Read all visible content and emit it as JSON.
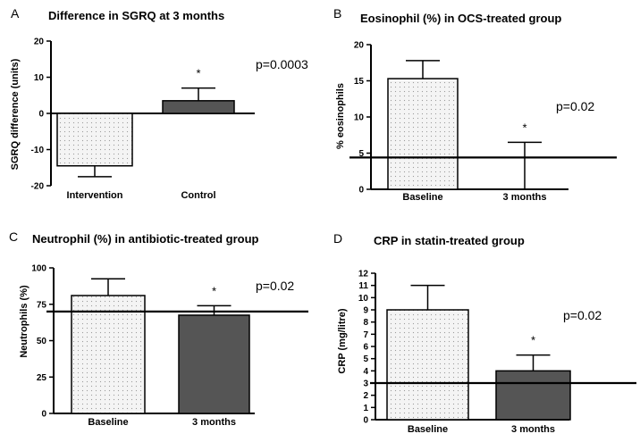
{
  "chart_data": [
    {
      "type": "bar",
      "panel_letter": "A",
      "title": "Difference in SGRQ at 3 months",
      "ylabel": "SGRQ difference (units)",
      "xlabel": "",
      "ylim": [
        -20,
        20
      ],
      "yticks": [
        -20,
        -10,
        0,
        10,
        20
      ],
      "categories": [
        "Intervention",
        "Control"
      ],
      "values": [
        -14.5,
        3.5
      ],
      "errors": [
        3.0,
        3.5
      ],
      "bar_styles": [
        "dotted",
        "dark"
      ],
      "significance_marker": "*",
      "significance_on": "Control",
      "p_value": "p=0.0003",
      "reference_line": null,
      "grid": false,
      "legend": "none"
    },
    {
      "type": "bar",
      "panel_letter": "B",
      "title": "Eosinophil (%) in OCS-treated group",
      "ylabel": "% eosinophils",
      "xlabel": "",
      "ylim": [
        0,
        20
      ],
      "yticks": [
        0,
        5,
        10,
        15,
        20
      ],
      "categories": [
        "Baseline",
        "3 months"
      ],
      "values": [
        15.3,
        0
      ],
      "errors": [
        2.5,
        6.5
      ],
      "bar_styles": [
        "dotted",
        "dark"
      ],
      "significance_marker": "*",
      "significance_on": "3 months",
      "p_value": "p=0.02",
      "reference_line": 4.4,
      "grid": false,
      "legend": "none"
    },
    {
      "type": "bar",
      "panel_letter": "C",
      "title": "Neutrophil (%) in antibiotic-treated group",
      "ylabel": "Neutrophils (%)",
      "xlabel": "",
      "ylim": [
        0,
        100
      ],
      "yticks": [
        0,
        25,
        50,
        75,
        100
      ],
      "categories": [
        "Baseline",
        "3 months"
      ],
      "values": [
        81,
        67.5
      ],
      "errors": [
        11.5,
        6.5
      ],
      "bar_styles": [
        "dotted",
        "dark"
      ],
      "significance_marker": "*",
      "significance_on": "3 months",
      "p_value": "p=0.02",
      "reference_line": 70,
      "grid": false,
      "legend": "none"
    },
    {
      "type": "bar",
      "panel_letter": "D",
      "title": "CRP in statin-treated group",
      "ylabel": "CRP (mg/litre)",
      "xlabel": "",
      "ylim": [
        0,
        12
      ],
      "yticks": [
        0,
        1,
        2,
        3,
        4,
        5,
        6,
        7,
        8,
        9,
        10,
        11,
        12
      ],
      "categories": [
        "Baseline",
        "3 months"
      ],
      "values": [
        9,
        4
      ],
      "errors": [
        2,
        1.3
      ],
      "bar_styles": [
        "dotted",
        "dark"
      ],
      "significance_marker": "*",
      "significance_on": "3 months",
      "p_value": "p=0.02",
      "reference_line": 3,
      "grid": false,
      "legend": "none"
    }
  ],
  "colors": {
    "dotted_bar_fill": "#f4f4f4",
    "dotted_bar_dots": "#9a9a9a",
    "dark_bar_fill": "#555555",
    "axis": "#000000",
    "reference_line": "#000000"
  }
}
